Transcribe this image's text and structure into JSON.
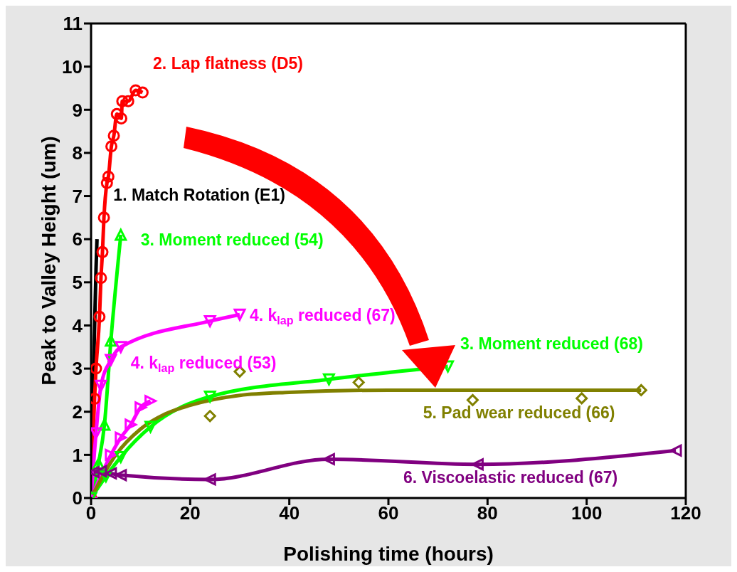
{
  "chart_data": {
    "type": "line",
    "xlabel": "Polishing time (hours)",
    "ylabel": "Peak to Valley Height (um)",
    "xlim": [
      0,
      120
    ],
    "xticks": [
      0,
      20,
      40,
      60,
      80,
      100,
      120
    ],
    "ylim": [
      0,
      11
    ],
    "yticks": [
      0,
      1,
      2,
      3,
      4,
      5,
      6,
      7,
      8,
      9,
      10,
      11
    ],
    "grid": false,
    "line_style": "solid",
    "series": [
      {
        "name": "1. Match Rotation (E1)",
        "color": "#000000",
        "marker": "none",
        "x": [
          0,
          0.5,
          1,
          1.2
        ],
        "values": [
          0,
          3,
          5.3,
          6
        ]
      },
      {
        "name": "2. Lap flatness (D5)",
        "color": "#ff0000",
        "marker": "circle",
        "x": [
          0,
          0.7,
          1,
          1.7,
          2,
          2.3,
          2.6,
          3.2,
          3.5,
          4.1,
          4.6,
          5.2,
          6.1,
          6.3,
          7.5,
          9,
          10.4
        ],
        "values": [
          0,
          2.3,
          3,
          4.2,
          5.1,
          5.7,
          6.5,
          7.3,
          7.45,
          8.15,
          8.4,
          8.9,
          8.8,
          9.2,
          9.2,
          9.45,
          9.4
        ]
      },
      {
        "name": "3. Moment reduced (54)",
        "color": "#00ff00",
        "marker": "triangle",
        "x": [
          0,
          1.5,
          2.7,
          4,
          6
        ],
        "values": [
          0,
          0.8,
          1.7,
          3.65,
          6.1
        ]
      },
      {
        "name": "4. k$_{lap}$ reduced (67)",
        "color": "#ff00ff",
        "marker": "triangle",
        "x": [
          0,
          1,
          2,
          4,
          6,
          24,
          30
        ],
        "values": [
          0,
          1.5,
          2.6,
          3.2,
          3.5,
          4.1,
          4.25
        ]
      },
      {
        "name": "4. k$_{lap}$ reduced (53)",
        "color": "#ff00ff",
        "marker": "triangle",
        "x": [
          0,
          4,
          6,
          8,
          10,
          12
        ],
        "values": [
          0,
          1,
          1.4,
          1.7,
          2.1,
          2.25
        ]
      },
      {
        "name": "3. Moment reduced (68)",
        "color": "#00ff00",
        "marker": "triangle",
        "x": [
          0,
          3,
          6,
          12,
          24,
          48,
          72
        ],
        "values": [
          0,
          0.5,
          0.95,
          1.65,
          2.35,
          2.75,
          3.05
        ]
      },
      {
        "name": "5. Pad wear reduced (66)",
        "color": "#808000",
        "marker": "none",
        "x": [
          0,
          5,
          10,
          15,
          20,
          30,
          40,
          60,
          111
        ],
        "values": [
          0,
          1,
          1.6,
          1.95,
          2.15,
          2.38,
          2.45,
          2.5,
          2.5
        ]
      },
      {
        "type": "scatter",
        "color": "#808000",
        "marker": "diamond",
        "x": [
          24,
          30,
          54,
          77,
          99,
          111
        ],
        "values": [
          1.9,
          2.93,
          2.68,
          2.27,
          2.31,
          2.5
        ]
      },
      {
        "name": "6. Viscoelastic reduced (67)",
        "color": "#800080",
        "marker": "triangle",
        "x": [
          0.5,
          2,
          4,
          6,
          24,
          48,
          78,
          118
        ],
        "values": [
          0.6,
          0.62,
          0.57,
          0.53,
          0.43,
          0.9,
          0.78,
          1.1
        ]
      }
    ]
  }
}
